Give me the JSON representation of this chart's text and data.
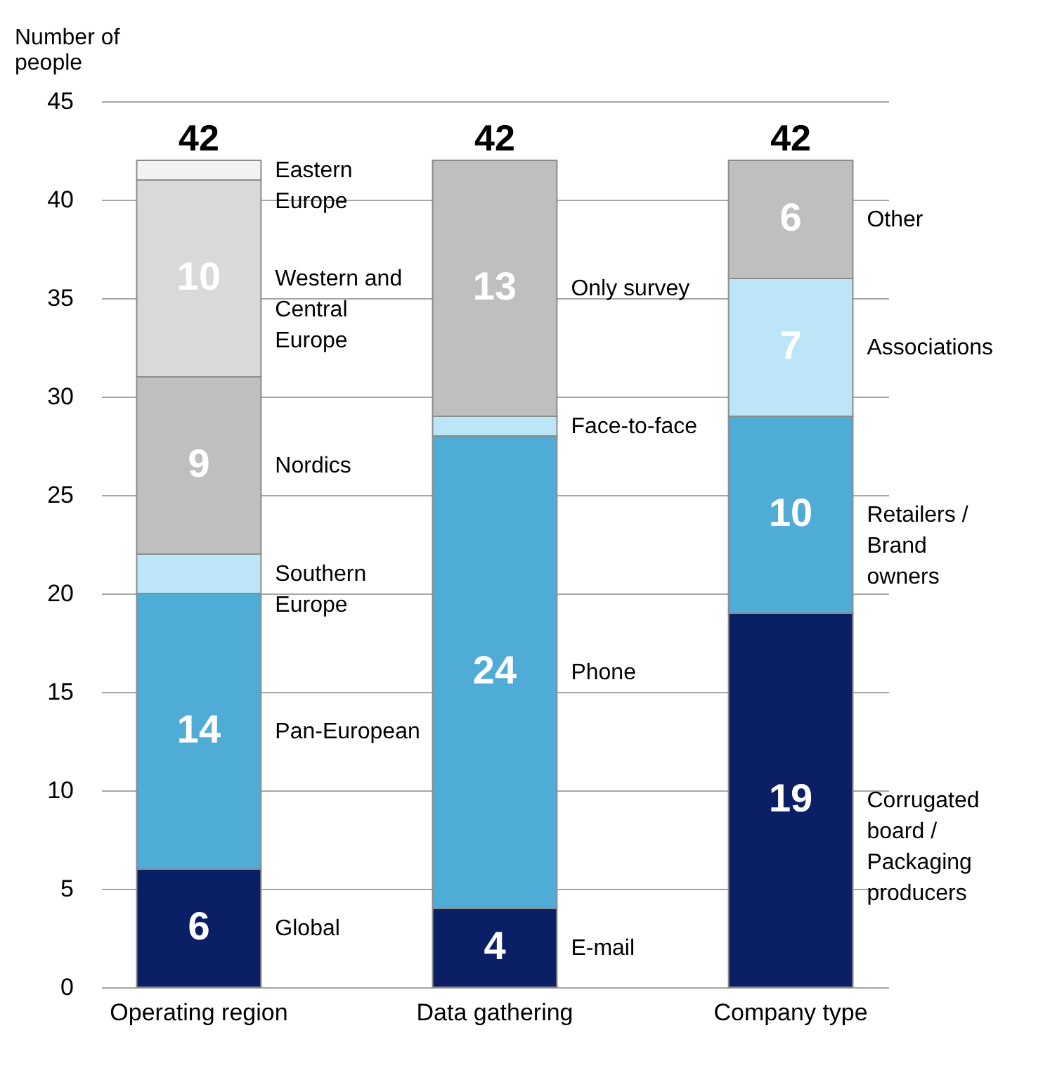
{
  "chart_data": {
    "type": "bar",
    "stacked": true,
    "ylabel": "Number of people",
    "categories": [
      "Operating region",
      "Data gathering",
      "Company type"
    ],
    "ylim": [
      0,
      45
    ],
    "yticks": [
      0,
      5,
      10,
      15,
      20,
      25,
      30,
      35,
      40,
      45
    ],
    "grid": "y",
    "totals": [
      "42",
      "42",
      "42"
    ],
    "series": [
      {
        "name": "Global",
        "color": "#0b1f66",
        "values": [
          6,
          null,
          null
        ],
        "value_labels": [
          "6",
          null,
          null
        ]
      },
      {
        "name": "Pan-European",
        "color": "#4eacd6",
        "values": [
          14,
          null,
          null
        ],
        "value_labels": [
          "14",
          null,
          null
        ]
      },
      {
        "name": "Southern Europe",
        "color": "#bde5f8",
        "values": [
          2,
          null,
          null
        ],
        "value_labels": [
          null,
          null,
          null
        ]
      },
      {
        "name": "Nordics",
        "color": "#bfbfbf",
        "values": [
          9,
          null,
          null
        ],
        "value_labels": [
          "9",
          null,
          null
        ]
      },
      {
        "name": "Western and Central Europe",
        "color": "#d9d9d9",
        "values": [
          10,
          null,
          null
        ],
        "value_labels": [
          "10",
          null,
          null
        ]
      },
      {
        "name": "Eastern Europe",
        "color": "#f2f2f2",
        "values": [
          1,
          null,
          null
        ],
        "value_labels": [
          null,
          null,
          null
        ]
      },
      {
        "name": "E-mail",
        "color": "#0b1f66",
        "values": [
          null,
          4,
          null
        ],
        "value_labels": [
          null,
          "4",
          null
        ]
      },
      {
        "name": "Phone",
        "color": "#4eacd6",
        "values": [
          null,
          24,
          null
        ],
        "value_labels": [
          null,
          "24",
          null
        ]
      },
      {
        "name": "Face-to-face",
        "color": "#bde5f8",
        "values": [
          null,
          1,
          null
        ],
        "value_labels": [
          null,
          null,
          null
        ]
      },
      {
        "name": "Only survey",
        "color": "#bfbfbf",
        "values": [
          null,
          13,
          null
        ],
        "value_labels": [
          null,
          "13",
          null
        ]
      },
      {
        "name": "Corrugated board / Packaging producers",
        "color": "#0b1f66",
        "values": [
          null,
          null,
          19
        ],
        "value_labels": [
          null,
          null,
          "19"
        ]
      },
      {
        "name": "Retailers / Brand owners",
        "color": "#4eacd6",
        "values": [
          null,
          null,
          10
        ],
        "value_labels": [
          null,
          null,
          "10"
        ]
      },
      {
        "name": "Associations",
        "color": "#bde5f8",
        "values": [
          null,
          null,
          7
        ],
        "value_labels": [
          null,
          null,
          "7"
        ]
      },
      {
        "name": "Other",
        "color": "#bfbfbf",
        "values": [
          null,
          null,
          6
        ],
        "value_labels": [
          null,
          null,
          "6"
        ]
      }
    ]
  }
}
